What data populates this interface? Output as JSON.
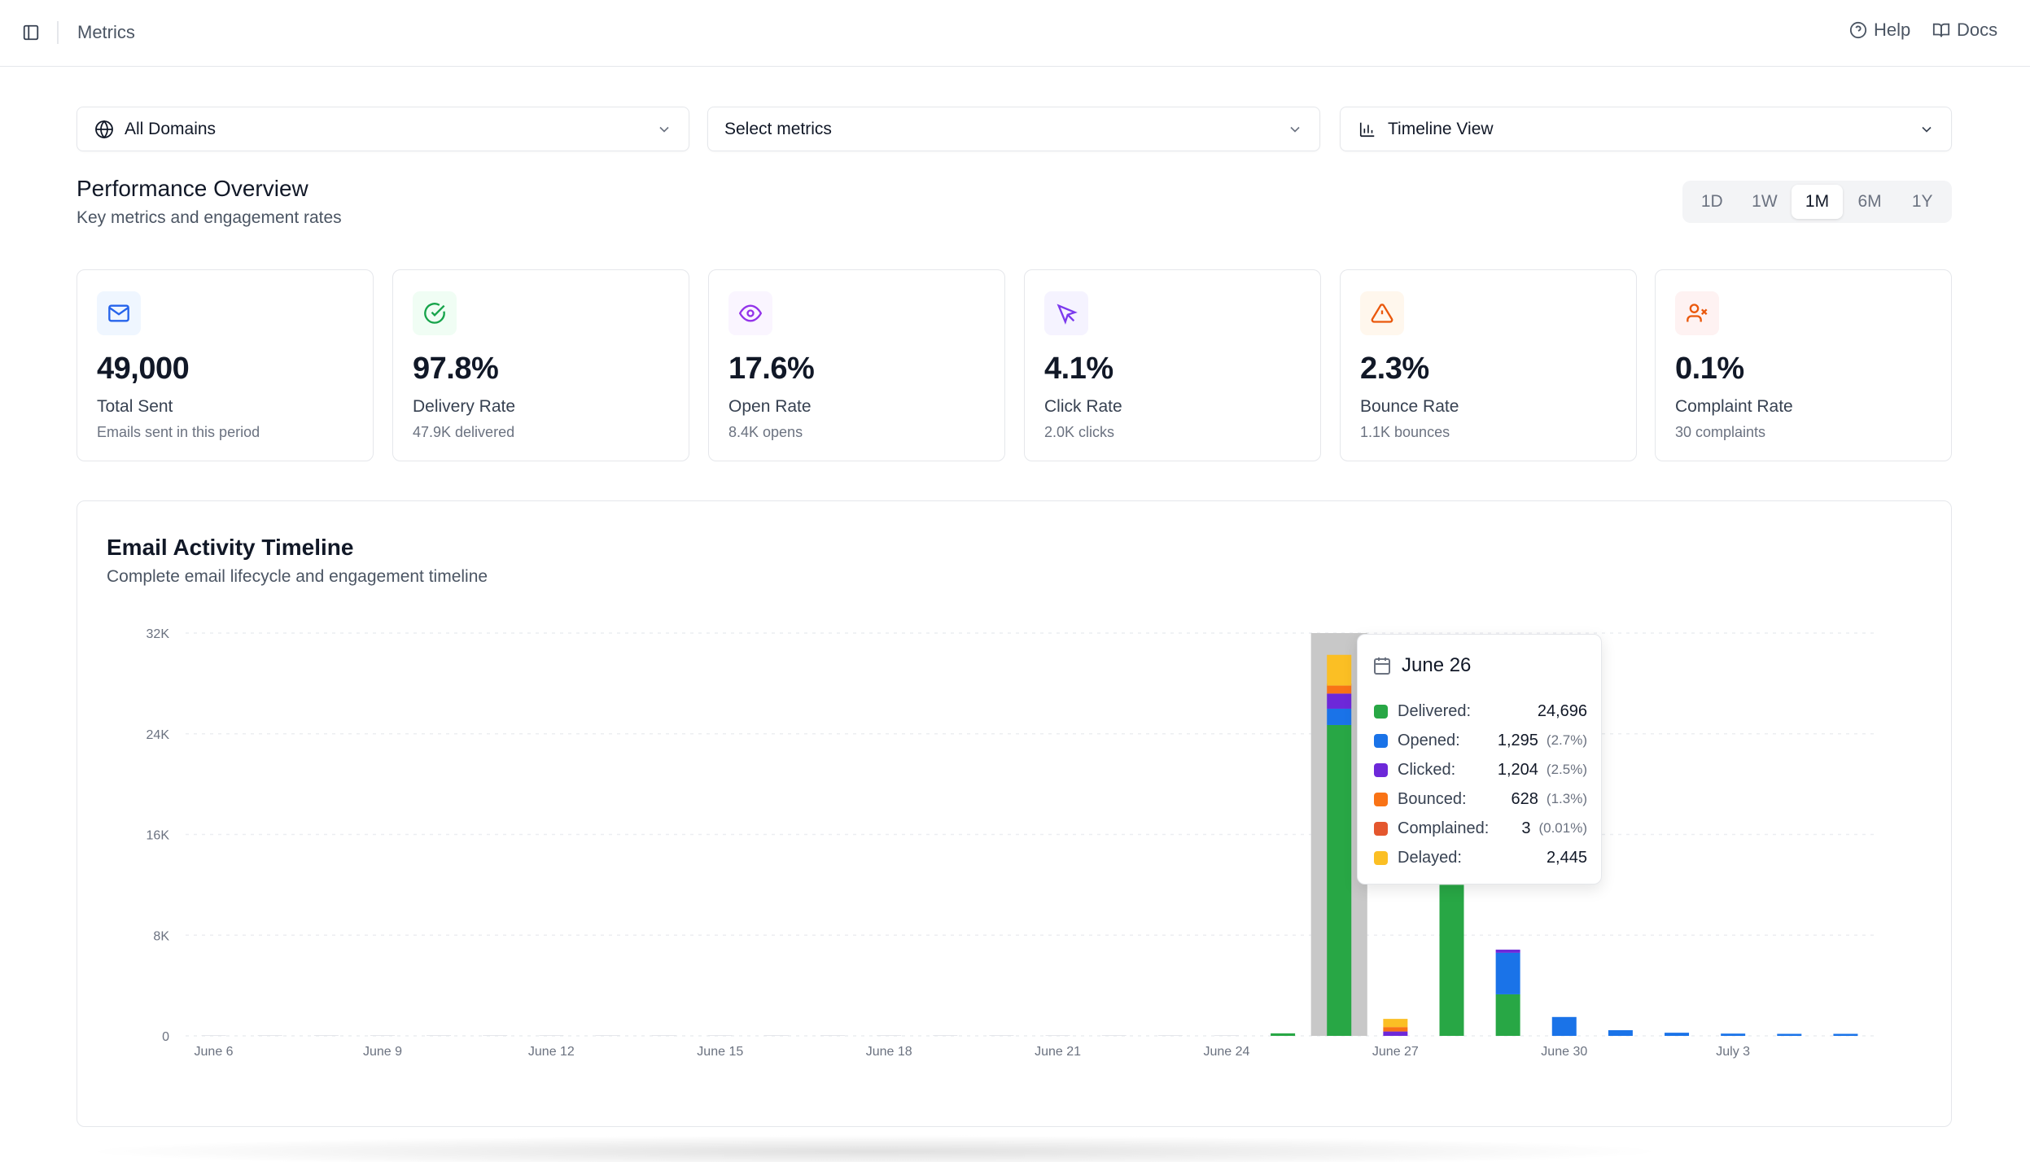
{
  "topbar": {
    "breadcrumb": "Metrics",
    "help_label": "Help",
    "docs_label": "Docs"
  },
  "filters": {
    "domains_value": "All Domains",
    "metrics_placeholder": "Select metrics",
    "view_value": "Timeline View"
  },
  "overview": {
    "title": "Performance Overview",
    "subtitle": "Key metrics and engagement rates",
    "ranges": [
      "1D",
      "1W",
      "1M",
      "6M",
      "1Y"
    ],
    "active_range": "1M"
  },
  "cards": [
    {
      "value": "49,000",
      "label": "Total Sent",
      "sub": "Emails sent in this period",
      "icon": "mail-icon",
      "color": "#2563eb",
      "bg": "#eff6ff"
    },
    {
      "value": "97.8%",
      "label": "Delivery Rate",
      "sub": "47.9K delivered",
      "icon": "check-circle-icon",
      "color": "#16a34a",
      "bg": "#f0fdf4"
    },
    {
      "value": "17.6%",
      "label": "Open Rate",
      "sub": "8.4K opens",
      "icon": "eye-icon",
      "color": "#9333ea",
      "bg": "#faf5ff"
    },
    {
      "value": "4.1%",
      "label": "Click Rate",
      "sub": "2.0K clicks",
      "icon": "cursor-icon",
      "color": "#7c3aed",
      "bg": "#f5f3ff"
    },
    {
      "value": "2.3%",
      "label": "Bounce Rate",
      "sub": "1.1K bounces",
      "icon": "alert-triangle-icon",
      "color": "#ea580c",
      "bg": "#fff7ed"
    },
    {
      "value": "0.1%",
      "label": "Complaint Rate",
      "sub": "30 complaints",
      "icon": "user-x-icon",
      "color": "#dc2626",
      "bg": "#fef2f2"
    }
  ],
  "timeline": {
    "title": "Email Activity Timeline",
    "subtitle": "Complete email lifecycle and engagement timeline"
  },
  "colors": {
    "delivered": "#28a745",
    "opened": "#1a73e8",
    "clicked": "#6d28d9",
    "bounced": "#f97316",
    "complained": "#e4572e",
    "delayed": "#fbbf24",
    "highlight": "#c8c8c8"
  },
  "chart_data": {
    "type": "bar",
    "stacked": true,
    "y_ticks": [
      "0",
      "8K",
      "16K",
      "24K",
      "32K"
    ],
    "ylim": [
      0,
      32000
    ],
    "x_tick_labels": [
      "June 6",
      "June 9",
      "June 12",
      "June 15",
      "June 18",
      "June 21",
      "June 24",
      "June 27",
      "June 30",
      "July 3"
    ],
    "categories": [
      "June 6",
      "June 7",
      "June 8",
      "June 9",
      "June 10",
      "June 11",
      "June 12",
      "June 13",
      "June 14",
      "June 15",
      "June 16",
      "June 17",
      "June 18",
      "June 19",
      "June 20",
      "June 21",
      "June 22",
      "June 23",
      "June 24",
      "June 25",
      "June 26",
      "June 27",
      "June 28",
      "June 29",
      "June 30",
      "July 1",
      "July 2",
      "July 3",
      "July 4",
      "July 5"
    ],
    "series": [
      {
        "name": "Delivered",
        "key": "delivered",
        "values": [
          0,
          0,
          0,
          0,
          0,
          0,
          0,
          0,
          0,
          0,
          0,
          0,
          0,
          0,
          0,
          0,
          0,
          0,
          0,
          200,
          24696,
          0,
          12000,
          3300,
          0,
          0,
          0,
          0,
          0,
          0
        ]
      },
      {
        "name": "Opened",
        "key": "opened",
        "values": [
          0,
          0,
          0,
          0,
          0,
          0,
          0,
          0,
          0,
          0,
          0,
          0,
          0,
          0,
          0,
          0,
          0,
          0,
          0,
          0,
          1295,
          0,
          0,
          3300,
          1500,
          450,
          250,
          180,
          120,
          50
        ]
      },
      {
        "name": "Clicked",
        "key": "clicked",
        "values": [
          0,
          0,
          0,
          0,
          0,
          0,
          0,
          0,
          0,
          0,
          0,
          0,
          0,
          0,
          0,
          0,
          0,
          0,
          0,
          0,
          1204,
          350,
          0,
          250,
          0,
          0,
          0,
          0,
          0,
          0
        ]
      },
      {
        "name": "Bounced",
        "key": "bounced",
        "values": [
          0,
          0,
          0,
          0,
          0,
          0,
          0,
          0,
          0,
          0,
          0,
          0,
          0,
          0,
          0,
          0,
          0,
          0,
          0,
          0,
          628,
          350,
          0,
          0,
          0,
          0,
          0,
          0,
          0,
          0
        ]
      },
      {
        "name": "Complained",
        "key": "complained",
        "values": [
          0,
          0,
          0,
          0,
          0,
          0,
          0,
          0,
          0,
          0,
          0,
          0,
          0,
          0,
          0,
          0,
          0,
          0,
          0,
          0,
          3,
          0,
          0,
          0,
          0,
          0,
          0,
          0,
          0,
          0
        ]
      },
      {
        "name": "Delayed",
        "key": "delayed",
        "values": [
          0,
          0,
          0,
          0,
          0,
          0,
          0,
          0,
          0,
          0,
          0,
          0,
          0,
          0,
          0,
          0,
          0,
          0,
          0,
          0,
          2445,
          650,
          0,
          0,
          0,
          0,
          0,
          0,
          0,
          0
        ]
      }
    ],
    "highlighted_category": "June 26"
  },
  "tooltip": {
    "date": "June 26",
    "rows": [
      {
        "key": "delivered",
        "label": "Delivered:",
        "value": "24,696",
        "pct": ""
      },
      {
        "key": "opened",
        "label": "Opened:",
        "value": "1,295",
        "pct": "(2.7%)"
      },
      {
        "key": "clicked",
        "label": "Clicked:",
        "value": "1,204",
        "pct": "(2.5%)"
      },
      {
        "key": "bounced",
        "label": "Bounced:",
        "value": "628",
        "pct": "(1.3%)"
      },
      {
        "key": "complained",
        "label": "Complained:",
        "value": "3",
        "pct": "(0.01%)"
      },
      {
        "key": "delayed",
        "label": "Delayed:",
        "value": "2,445",
        "pct": ""
      }
    ]
  }
}
